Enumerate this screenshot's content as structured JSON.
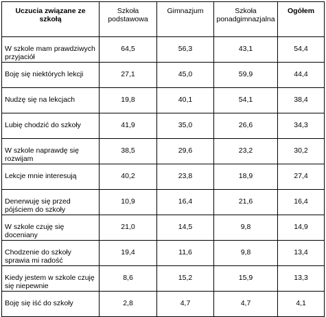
{
  "table": {
    "headers": [
      "Uczucia związane ze szkołą",
      "Szkoła podstawowa",
      "Gimnazjum",
      "Szkoła ponadgimnazjalna",
      "Ogółem"
    ],
    "rows": [
      {
        "label": "W szkole mam prawdziwych przyjaciół",
        "values": [
          "64,5",
          "56,3",
          "43,1",
          "54,4"
        ]
      },
      {
        "label": "Boję się niektórych lekcji",
        "values": [
          "27,1",
          "45,0",
          "59,9",
          "44,4"
        ]
      },
      {
        "label": "Nudzę się na lekcjach",
        "values": [
          "19,8",
          "40,1",
          "54,1",
          "38,4"
        ]
      },
      {
        "label": "Lubię chodzić do szkoły",
        "values": [
          "41,9",
          "35,0",
          "26,6",
          "34,3"
        ]
      },
      {
        "label": "W szkole naprawdę się rozwijam",
        "values": [
          "38,5",
          "29,6",
          "23,2",
          "30,2"
        ]
      },
      {
        "label": "Lekcje mnie interesują",
        "values": [
          "40,2",
          "23,8",
          "18,9",
          "27,4"
        ]
      },
      {
        "label": "Denerwuję się przed pójściem do szkoły",
        "values": [
          "10,9",
          "16,4",
          "21,6",
          "16,4"
        ]
      },
      {
        "label": "W szkole czuję się doceniany",
        "values": [
          "21,0",
          "14,5",
          "9,8",
          "14,9"
        ]
      },
      {
        "label": "Chodzenie do szkoły sprawia mi radość",
        "values": [
          "19,4",
          "11,6",
          "9,8",
          "13,4"
        ]
      },
      {
        "label": "Kiedy jestem w szkole czuję się niepewnie",
        "values": [
          "8,6",
          "15,2",
          "15,9",
          "13,3"
        ]
      },
      {
        "label": "Boję się iść do szkoły",
        "values": [
          "2,8",
          "4,7",
          "4,7",
          "4,1"
        ]
      }
    ]
  }
}
